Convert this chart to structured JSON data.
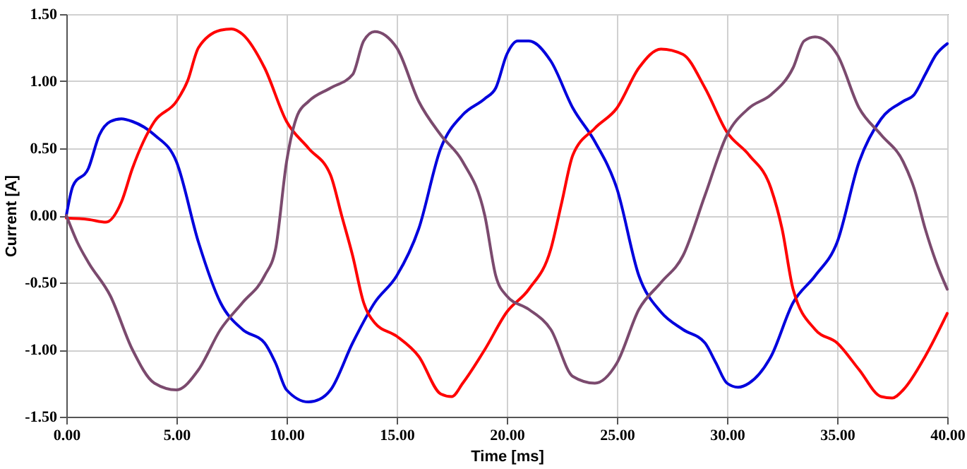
{
  "chart_data": {
    "type": "line",
    "xlabel": "Time [ms]",
    "ylabel": "Current [A]",
    "grid": true,
    "legend": false,
    "line_style": "solid",
    "marker": "none",
    "xlim": [
      0,
      40
    ],
    "ylim": [
      -1.5,
      1.5
    ],
    "xticks": [
      {
        "value": 0,
        "label": "0.00"
      },
      {
        "value": 5,
        "label": "5.00"
      },
      {
        "value": 10,
        "label": "10.00"
      },
      {
        "value": 15,
        "label": "15.00"
      },
      {
        "value": 20,
        "label": "20.00"
      },
      {
        "value": 25,
        "label": "25.00"
      },
      {
        "value": 30,
        "label": "30.00"
      },
      {
        "value": 35,
        "label": "35.00"
      },
      {
        "value": 40,
        "label": "40.00"
      }
    ],
    "yticks": [
      {
        "value": -1.5,
        "label": "-1.50"
      },
      {
        "value": -1,
        "label": "-1.00"
      },
      {
        "value": -0.5,
        "label": "-0.50"
      },
      {
        "value": 0,
        "label": "0.00"
      },
      {
        "value": 0.5,
        "label": "0.50"
      },
      {
        "value": 1,
        "label": "1.00"
      },
      {
        "value": 1.5,
        "label": "1.50"
      }
    ],
    "series": [
      {
        "color": "#0000dd",
        "x": [
          0,
          0.3,
          1,
          1.5,
          2,
          2.5,
          3,
          4,
          5,
          6,
          7,
          8,
          9,
          9.5,
          10,
          11,
          11.5,
          12,
          13,
          14,
          15,
          16,
          17,
          18,
          19,
          19.5,
          20,
          20.5,
          21,
          22,
          23,
          24,
          25,
          26,
          27,
          28,
          29,
          29.5,
          30,
          30.5,
          31,
          32,
          33,
          34,
          35,
          36,
          37,
          38,
          38.5,
          39,
          39.5,
          40
        ],
        "values": [
          0,
          0.22,
          0.35,
          0.6,
          0.7,
          0.72,
          0.7,
          0.6,
          0.4,
          -0.2,
          -0.65,
          -0.85,
          -0.95,
          -1.1,
          -1.3,
          -1.39,
          -1.37,
          -1.3,
          -0.95,
          -0.65,
          -0.45,
          -0.1,
          0.5,
          0.75,
          0.87,
          0.95,
          1.2,
          1.3,
          1.3,
          1.15,
          0.8,
          0.55,
          0.2,
          -0.45,
          -0.72,
          -0.85,
          -0.95,
          -1.1,
          -1.25,
          -1.28,
          -1.25,
          -1.05,
          -0.65,
          -0.45,
          -0.2,
          0.4,
          0.72,
          0.85,
          0.9,
          1.05,
          1.2,
          1.28
        ]
      },
      {
        "color": "#ff0000",
        "x": [
          0,
          1,
          1.8,
          2.5,
          3,
          3.5,
          4,
          5,
          5.5,
          6,
          7,
          7.5,
          8,
          9,
          10,
          11,
          12,
          12.5,
          13,
          13.5,
          14,
          15,
          16,
          17,
          17.5,
          18,
          19,
          20,
          21,
          22,
          22.5,
          23,
          24,
          25,
          26,
          27,
          28,
          29,
          30,
          31,
          32,
          32.5,
          33,
          34,
          35,
          36,
          37,
          37.5,
          38,
          39,
          40
        ],
        "values": [
          -0.02,
          -0.03,
          -0.05,
          0.1,
          0.35,
          0.55,
          0.7,
          0.85,
          1.0,
          1.25,
          1.38,
          1.39,
          1.35,
          1.1,
          0.7,
          0.5,
          0.3,
          0.0,
          -0.3,
          -0.65,
          -0.8,
          -0.9,
          -1.05,
          -1.33,
          -1.35,
          -1.25,
          -1.0,
          -0.72,
          -0.55,
          -0.25,
          0.1,
          0.45,
          0.65,
          0.8,
          1.1,
          1.24,
          1.2,
          0.95,
          0.62,
          0.45,
          0.2,
          -0.1,
          -0.55,
          -0.85,
          -0.95,
          -1.15,
          -1.35,
          -1.36,
          -1.3,
          -1.05,
          -0.73
        ]
      },
      {
        "color": "#7b4a6e",
        "x": [
          0,
          0.5,
          1,
          2,
          3,
          4,
          5,
          6,
          7,
          8,
          9,
          9.5,
          10,
          10.5,
          11,
          12,
          13,
          13.5,
          14,
          15,
          16,
          17,
          18,
          19,
          19.5,
          20,
          21,
          22,
          23,
          24,
          25,
          26,
          27,
          28,
          29,
          30,
          31,
          32,
          33,
          33.5,
          34,
          35,
          36,
          37,
          38,
          38.5,
          39,
          39.5,
          40
        ],
        "values": [
          0,
          -0.2,
          -0.35,
          -0.6,
          -1.0,
          -1.25,
          -1.3,
          -1.15,
          -0.85,
          -0.65,
          -0.45,
          -0.25,
          0.4,
          0.75,
          0.85,
          0.95,
          1.05,
          1.3,
          1.37,
          1.25,
          0.85,
          0.6,
          0.4,
          0.0,
          -0.45,
          -0.6,
          -0.7,
          -0.85,
          -1.2,
          -1.25,
          -1.1,
          -0.7,
          -0.5,
          -0.3,
          0.15,
          0.6,
          0.8,
          0.9,
          1.1,
          1.3,
          1.33,
          1.2,
          0.8,
          0.6,
          0.4,
          0.2,
          -0.1,
          -0.35,
          -0.55
        ]
      }
    ]
  }
}
